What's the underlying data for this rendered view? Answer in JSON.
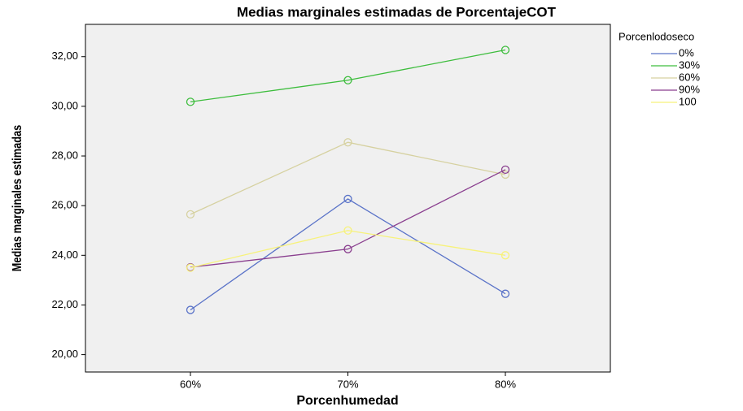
{
  "chart_data": {
    "type": "line",
    "title": "Medias marginales estimadas de PorcentajeCOT",
    "x_label": "Porcenhumedad",
    "y_label": "Medias marginales estimadas",
    "legend_title": "Porcenlodoseco",
    "categories": [
      "60%",
      "70%",
      "80%"
    ],
    "series": [
      {
        "name": "0%",
        "color": "#5a73c8",
        "values": [
          21.8,
          26.27,
          22.45
        ]
      },
      {
        "name": "30%",
        "color": "#3dbd3d",
        "values": [
          30.18,
          31.05,
          32.27
        ]
      },
      {
        "name": "60%",
        "color": "#d6d1a0",
        "values": [
          25.65,
          28.55,
          27.25
        ]
      },
      {
        "name": "90%",
        "color": "#8a3f8f",
        "values": [
          23.52,
          24.25,
          27.45
        ]
      },
      {
        "name": "100",
        "color": "#f7f27a",
        "values": [
          23.5,
          25.0,
          24.0
        ]
      }
    ],
    "ylim": [
      19.3,
      33.3
    ],
    "yticks": [
      {
        "value": 20,
        "label": "20,00"
      },
      {
        "value": 22,
        "label": "22,00"
      },
      {
        "value": 24,
        "label": "24,00"
      },
      {
        "value": 26,
        "label": "26,00"
      },
      {
        "value": 28,
        "label": "28,00"
      },
      {
        "value": 30,
        "label": "30,00"
      },
      {
        "value": 32,
        "label": "32,00"
      }
    ]
  }
}
